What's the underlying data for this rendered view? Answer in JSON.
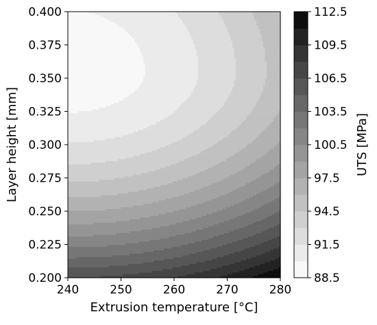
{
  "chart_data": {
    "type": "heatmap",
    "subtype": "filled-contour",
    "title": "",
    "xlabel": "Extrusion temperature [°C]",
    "ylabel": "Layer height  [mm]",
    "colorbar_label": "UTS [MPa]",
    "colormap": "grayscale (low = white, high = black)",
    "xlim": [
      240,
      280
    ],
    "ylim": [
      0.2,
      0.4
    ],
    "x_ticks": [
      "240",
      "250",
      "260",
      "270",
      "280"
    ],
    "y_ticks": [
      "0.200",
      "0.225",
      "0.250",
      "0.275",
      "0.300",
      "0.325",
      "0.350",
      "0.375",
      "0.400"
    ],
    "colorbar_range": [
      88.5,
      112.5
    ],
    "colorbar_step": 1.5,
    "colorbar_ticks": [
      "88.5",
      "91.5",
      "94.5",
      "97.5",
      "100.5",
      "103.5",
      "106.5",
      "109.5",
      "112.5"
    ],
    "surface": {
      "description": "UTS as a function of temperature T and layer height h; minimum near T=240, h≈0.355",
      "min_value": 89.2,
      "min_location": {
        "x": 240,
        "y": 0.355
      },
      "max_value": 112.1,
      "max_location": {
        "x": 280,
        "y": 0.2
      },
      "sample_values": [
        {
          "x": 240,
          "y": 0.2,
          "uts": 108.2
        },
        {
          "x": 240,
          "y": 0.3,
          "uts": 92.0
        },
        {
          "x": 240,
          "y": 0.355,
          "uts": 89.2
        },
        {
          "x": 240,
          "y": 0.4,
          "uts": 90.0
        },
        {
          "x": 280,
          "y": 0.2,
          "uts": 112.1
        },
        {
          "x": 280,
          "y": 0.35,
          "uts": 95.5
        },
        {
          "x": 280,
          "y": 0.4,
          "uts": 96.3
        }
      ]
    }
  }
}
